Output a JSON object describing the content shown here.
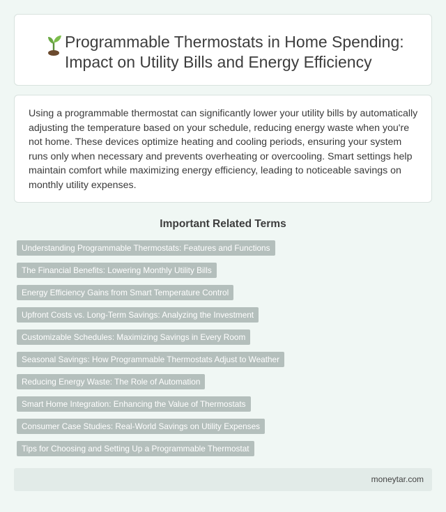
{
  "header": {
    "title": "Programmable Thermostats in Home Spending: Impact on Utility Bills and Energy Efficiency",
    "icon": "sprout-icon"
  },
  "intro": {
    "text": "Using a programmable thermostat can significantly lower your utility bills by automatically adjusting the temperature based on your schedule, reducing energy waste when you're not home. These devices optimize heating and cooling periods, ensuring your system runs only when necessary and prevents overheating or overcooling. Smart settings help maintain comfort while maximizing energy efficiency, leading to noticeable savings on monthly utility expenses."
  },
  "related": {
    "heading": "Important Related Terms",
    "terms": [
      "Understanding Programmable Thermostats: Features and Functions",
      "The Financial Benefits: Lowering Monthly Utility Bills",
      "Energy Efficiency Gains from Smart Temperature Control",
      "Upfront Costs vs. Long-Term Savings: Analyzing the Investment",
      "Customizable Schedules: Maximizing Savings in Every Room",
      "Seasonal Savings: How Programmable Thermostats Adjust to Weather",
      "Reducing Energy Waste: The Role of Automation",
      "Smart Home Integration: Enhancing the Value of Thermostats",
      "Consumer Case Studies: Real-World Savings on Utility Expenses",
      "Tips for Choosing and Setting Up a Programmable Thermostat"
    ]
  },
  "footer": {
    "site": "moneytar.com"
  },
  "colors": {
    "background": "#f0f7f4",
    "term_chip": "#b4bfbc",
    "footer_bar": "#e2ebe8"
  }
}
